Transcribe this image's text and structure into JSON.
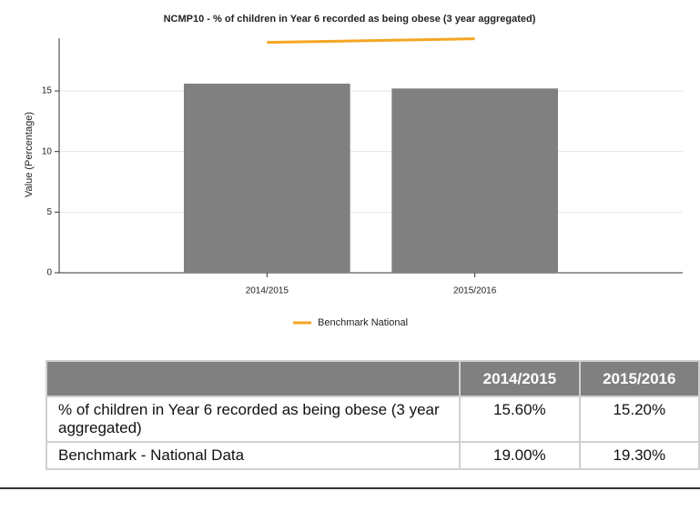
{
  "chart_data": {
    "type": "bar",
    "title": "NCMP10 - % of children in Year 6 recorded as being obese (3 year aggregated)",
    "y_label": "Value (Percentage)",
    "categories": [
      "2014/2015",
      "2015/2016"
    ],
    "series": [
      {
        "type": "bar",
        "color": "#808080",
        "values": [
          15.6,
          15.2
        ]
      },
      {
        "type": "line",
        "name": "Benchmark National",
        "color": "#f5a623",
        "values": [
          19.0,
          19.3
        ]
      }
    ],
    "ylim": [
      0,
      19.35
    ],
    "yticks": [
      0,
      5,
      10,
      15
    ],
    "grid": true
  },
  "table": {
    "header": [
      "2014/2015",
      "2015/2016"
    ],
    "rows": [
      {
        "label": "% of children in Year 6 recorded as being obese (3 year aggregated)",
        "cells": [
          "15.60%",
          "15.20%"
        ]
      },
      {
        "label": "Benchmark - National Data",
        "cells": [
          "19.00%",
          "19.30%"
        ]
      }
    ]
  }
}
